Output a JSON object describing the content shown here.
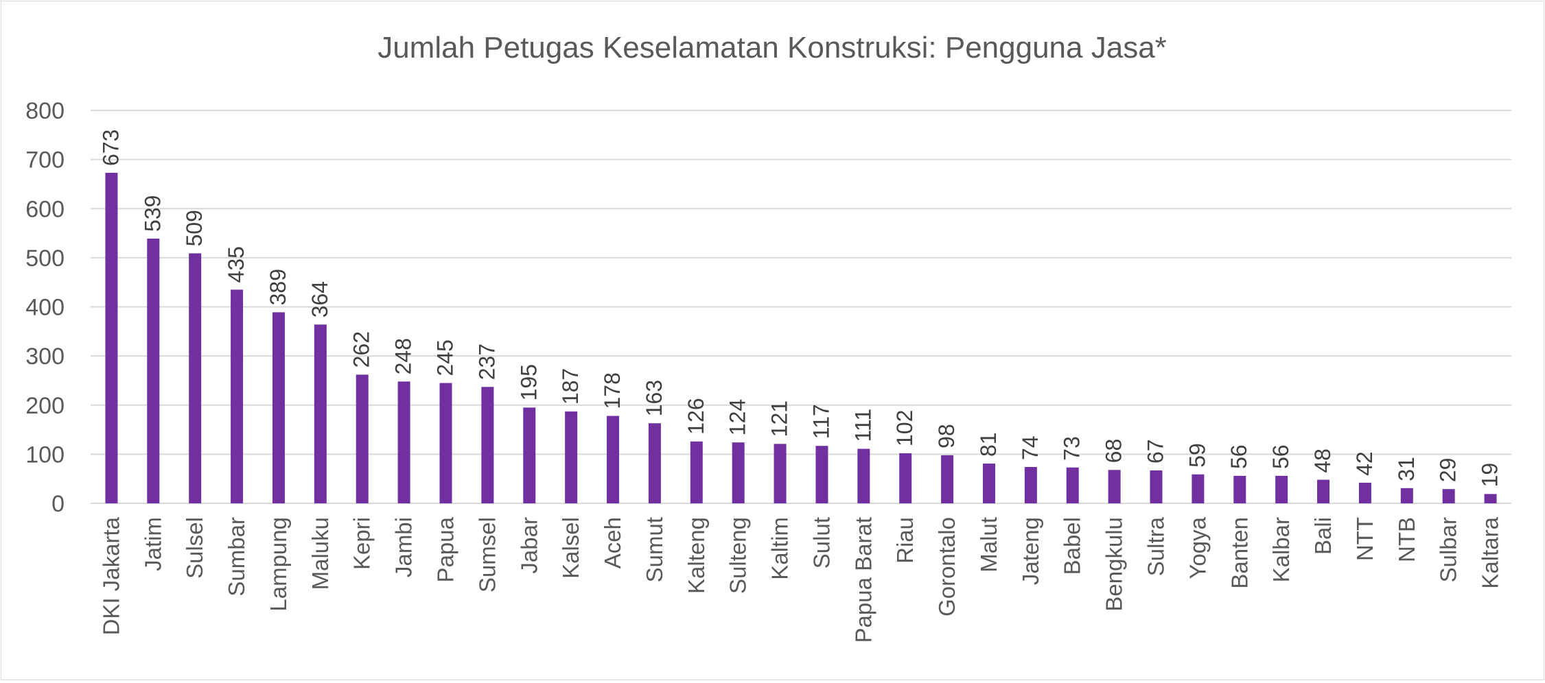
{
  "chart_data": {
    "type": "bar",
    "title": "Jumlah Petugas Keselamatan Konstruksi: Pengguna Jasa*",
    "xlabel": "",
    "ylabel": "",
    "ylim": [
      0,
      800
    ],
    "y_ticks": [
      0,
      100,
      200,
      300,
      400,
      500,
      600,
      700,
      800
    ],
    "grid": true,
    "legend": "none",
    "bar_color": "#7030a0",
    "categories": [
      "DKI Jakarta",
      "Jatim",
      "Sulsel",
      "Sumbar",
      "Lampung",
      "Maluku",
      "Kepri",
      "Jambi",
      "Papua",
      "Sumsel",
      "Jabar",
      "Kalsel",
      "Aceh",
      "Sumut",
      "Kalteng",
      "Sulteng",
      "Kaltim",
      "Sulut",
      "Papua Barat",
      "Riau",
      "Gorontalo",
      "Malut",
      "Jateng",
      "Babel",
      "Bengkulu",
      "Sultra",
      "Yogya",
      "Banten",
      "Kalbar",
      "Bali",
      "NTT",
      "NTB",
      "Sulbar",
      "Kaltara"
    ],
    "values": [
      673,
      539,
      509,
      435,
      389,
      364,
      262,
      248,
      245,
      237,
      195,
      187,
      178,
      163,
      126,
      124,
      121,
      117,
      111,
      102,
      98,
      81,
      74,
      73,
      68,
      67,
      59,
      56,
      56,
      48,
      42,
      31,
      29,
      19
    ]
  }
}
